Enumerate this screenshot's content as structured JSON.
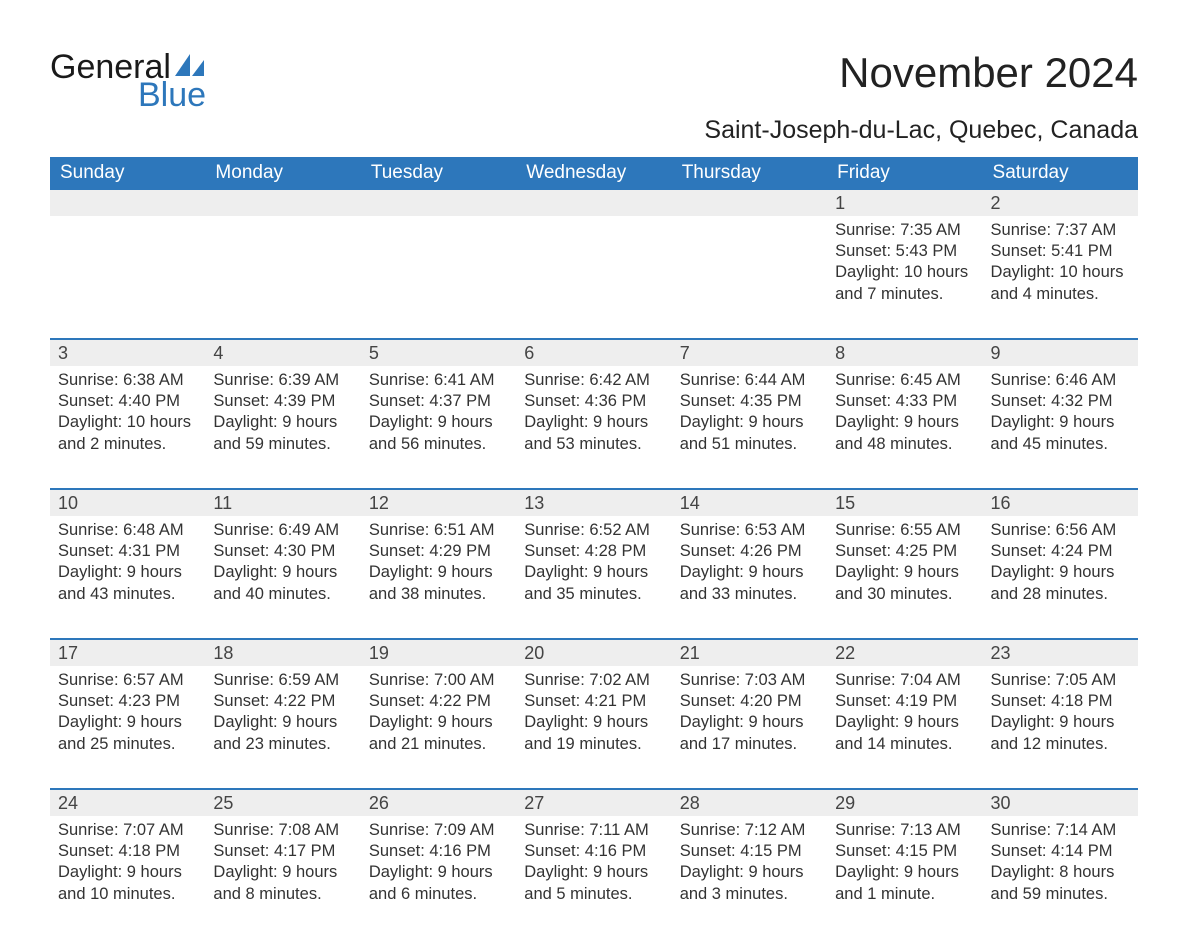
{
  "logo": {
    "line1": "General",
    "line2": "Blue"
  },
  "title": "November 2024",
  "location": "Saint-Joseph-du-Lac, Quebec, Canada",
  "colors": {
    "brand_blue": "#2d77bb",
    "header_bg": "#2d77bb",
    "header_text": "#ffffff",
    "daynum_bg": "#eeeeee",
    "text": "#333333",
    "background": "#ffffff"
  },
  "weekdays": [
    "Sunday",
    "Monday",
    "Tuesday",
    "Wednesday",
    "Thursday",
    "Friday",
    "Saturday"
  ],
  "weeks": [
    [
      {
        "n": "",
        "sunrise": "",
        "sunset": "",
        "daylight": ""
      },
      {
        "n": "",
        "sunrise": "",
        "sunset": "",
        "daylight": ""
      },
      {
        "n": "",
        "sunrise": "",
        "sunset": "",
        "daylight": ""
      },
      {
        "n": "",
        "sunrise": "",
        "sunset": "",
        "daylight": ""
      },
      {
        "n": "",
        "sunrise": "",
        "sunset": "",
        "daylight": ""
      },
      {
        "n": "1",
        "sunrise": "Sunrise: 7:35 AM",
        "sunset": "Sunset: 5:43 PM",
        "daylight": "Daylight: 10 hours and 7 minutes."
      },
      {
        "n": "2",
        "sunrise": "Sunrise: 7:37 AM",
        "sunset": "Sunset: 5:41 PM",
        "daylight": "Daylight: 10 hours and 4 minutes."
      }
    ],
    [
      {
        "n": "3",
        "sunrise": "Sunrise: 6:38 AM",
        "sunset": "Sunset: 4:40 PM",
        "daylight": "Daylight: 10 hours and 2 minutes."
      },
      {
        "n": "4",
        "sunrise": "Sunrise: 6:39 AM",
        "sunset": "Sunset: 4:39 PM",
        "daylight": "Daylight: 9 hours and 59 minutes."
      },
      {
        "n": "5",
        "sunrise": "Sunrise: 6:41 AM",
        "sunset": "Sunset: 4:37 PM",
        "daylight": "Daylight: 9 hours and 56 minutes."
      },
      {
        "n": "6",
        "sunrise": "Sunrise: 6:42 AM",
        "sunset": "Sunset: 4:36 PM",
        "daylight": "Daylight: 9 hours and 53 minutes."
      },
      {
        "n": "7",
        "sunrise": "Sunrise: 6:44 AM",
        "sunset": "Sunset: 4:35 PM",
        "daylight": "Daylight: 9 hours and 51 minutes."
      },
      {
        "n": "8",
        "sunrise": "Sunrise: 6:45 AM",
        "sunset": "Sunset: 4:33 PM",
        "daylight": "Daylight: 9 hours and 48 minutes."
      },
      {
        "n": "9",
        "sunrise": "Sunrise: 6:46 AM",
        "sunset": "Sunset: 4:32 PM",
        "daylight": "Daylight: 9 hours and 45 minutes."
      }
    ],
    [
      {
        "n": "10",
        "sunrise": "Sunrise: 6:48 AM",
        "sunset": "Sunset: 4:31 PM",
        "daylight": "Daylight: 9 hours and 43 minutes."
      },
      {
        "n": "11",
        "sunrise": "Sunrise: 6:49 AM",
        "sunset": "Sunset: 4:30 PM",
        "daylight": "Daylight: 9 hours and 40 minutes."
      },
      {
        "n": "12",
        "sunrise": "Sunrise: 6:51 AM",
        "sunset": "Sunset: 4:29 PM",
        "daylight": "Daylight: 9 hours and 38 minutes."
      },
      {
        "n": "13",
        "sunrise": "Sunrise: 6:52 AM",
        "sunset": "Sunset: 4:28 PM",
        "daylight": "Daylight: 9 hours and 35 minutes."
      },
      {
        "n": "14",
        "sunrise": "Sunrise: 6:53 AM",
        "sunset": "Sunset: 4:26 PM",
        "daylight": "Daylight: 9 hours and 33 minutes."
      },
      {
        "n": "15",
        "sunrise": "Sunrise: 6:55 AM",
        "sunset": "Sunset: 4:25 PM",
        "daylight": "Daylight: 9 hours and 30 minutes."
      },
      {
        "n": "16",
        "sunrise": "Sunrise: 6:56 AM",
        "sunset": "Sunset: 4:24 PM",
        "daylight": "Daylight: 9 hours and 28 minutes."
      }
    ],
    [
      {
        "n": "17",
        "sunrise": "Sunrise: 6:57 AM",
        "sunset": "Sunset: 4:23 PM",
        "daylight": "Daylight: 9 hours and 25 minutes."
      },
      {
        "n": "18",
        "sunrise": "Sunrise: 6:59 AM",
        "sunset": "Sunset: 4:22 PM",
        "daylight": "Daylight: 9 hours and 23 minutes."
      },
      {
        "n": "19",
        "sunrise": "Sunrise: 7:00 AM",
        "sunset": "Sunset: 4:22 PM",
        "daylight": "Daylight: 9 hours and 21 minutes."
      },
      {
        "n": "20",
        "sunrise": "Sunrise: 7:02 AM",
        "sunset": "Sunset: 4:21 PM",
        "daylight": "Daylight: 9 hours and 19 minutes."
      },
      {
        "n": "21",
        "sunrise": "Sunrise: 7:03 AM",
        "sunset": "Sunset: 4:20 PM",
        "daylight": "Daylight: 9 hours and 17 minutes."
      },
      {
        "n": "22",
        "sunrise": "Sunrise: 7:04 AM",
        "sunset": "Sunset: 4:19 PM",
        "daylight": "Daylight: 9 hours and 14 minutes."
      },
      {
        "n": "23",
        "sunrise": "Sunrise: 7:05 AM",
        "sunset": "Sunset: 4:18 PM",
        "daylight": "Daylight: 9 hours and 12 minutes."
      }
    ],
    [
      {
        "n": "24",
        "sunrise": "Sunrise: 7:07 AM",
        "sunset": "Sunset: 4:18 PM",
        "daylight": "Daylight: 9 hours and 10 minutes."
      },
      {
        "n": "25",
        "sunrise": "Sunrise: 7:08 AM",
        "sunset": "Sunset: 4:17 PM",
        "daylight": "Daylight: 9 hours and 8 minutes."
      },
      {
        "n": "26",
        "sunrise": "Sunrise: 7:09 AM",
        "sunset": "Sunset: 4:16 PM",
        "daylight": "Daylight: 9 hours and 6 minutes."
      },
      {
        "n": "27",
        "sunrise": "Sunrise: 7:11 AM",
        "sunset": "Sunset: 4:16 PM",
        "daylight": "Daylight: 9 hours and 5 minutes."
      },
      {
        "n": "28",
        "sunrise": "Sunrise: 7:12 AM",
        "sunset": "Sunset: 4:15 PM",
        "daylight": "Daylight: 9 hours and 3 minutes."
      },
      {
        "n": "29",
        "sunrise": "Sunrise: 7:13 AM",
        "sunset": "Sunset: 4:15 PM",
        "daylight": "Daylight: 9 hours and 1 minute."
      },
      {
        "n": "30",
        "sunrise": "Sunrise: 7:14 AM",
        "sunset": "Sunset: 4:14 PM",
        "daylight": "Daylight: 8 hours and 59 minutes."
      }
    ]
  ]
}
